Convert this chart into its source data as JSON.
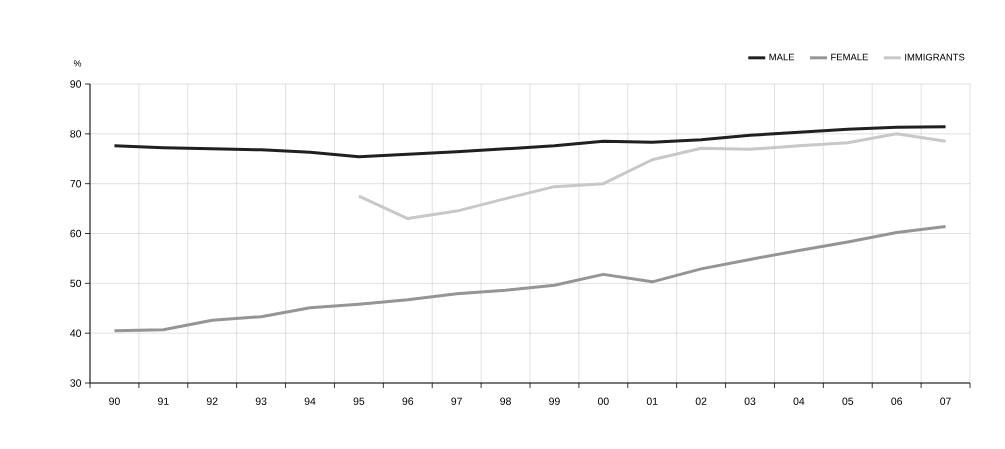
{
  "chart_data": {
    "type": "line",
    "ylabel": "%",
    "categories": [
      "90",
      "91",
      "92",
      "93",
      "94",
      "95",
      "96",
      "97",
      "98",
      "99",
      "00",
      "01",
      "02",
      "03",
      "04",
      "05",
      "06",
      "07"
    ],
    "series": [
      {
        "name": "MALE",
        "color": "#231f20",
        "values": [
          77.6,
          77.2,
          77.0,
          76.8,
          76.3,
          75.4,
          75.9,
          76.4,
          77.0,
          77.6,
          78.5,
          78.3,
          78.8,
          79.7,
          80.3,
          80.9,
          81.3,
          81.4
        ]
      },
      {
        "name": "FEMALE",
        "color": "#939598",
        "values": [
          40.5,
          40.7,
          42.6,
          43.3,
          45.1,
          45.8,
          46.7,
          47.9,
          48.6,
          49.6,
          51.8,
          50.3,
          52.9,
          54.8,
          56.6,
          58.3,
          60.2,
          61.4
        ]
      },
      {
        "name": "IMMIGRANTS",
        "color": "#c8c8c8",
        "values": [
          null,
          null,
          null,
          null,
          null,
          67.5,
          63.0,
          64.5,
          67.0,
          69.4,
          70.0,
          74.8,
          77.1,
          76.9,
          77.6,
          78.2,
          80.0,
          78.5
        ]
      }
    ],
    "ylim": [
      30,
      90
    ],
    "yticks": [
      30,
      40,
      50,
      60,
      70,
      80,
      90
    ],
    "grid": true,
    "legend": "top right",
    "marker": "none",
    "line_style": "solid"
  }
}
